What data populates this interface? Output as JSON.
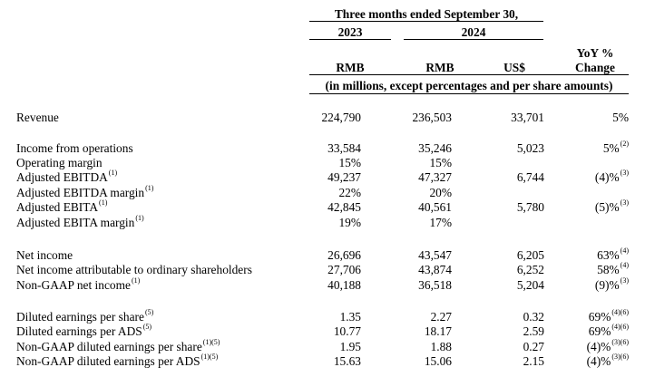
{
  "header": {
    "period_title": "Three months ended September 30,",
    "year_2023": "2023",
    "year_2024": "2024",
    "yoy_line1": "YoY %",
    "yoy_line2": "Change",
    "col_rmb_2023": "RMB",
    "col_rmb_2024": "RMB",
    "col_usd": "US$",
    "units_note": "(in millions, except percentages and per share amounts)"
  },
  "rows": [
    {
      "label": "Revenue",
      "note": "",
      "v2023": "224,790",
      "v2024": "236,503",
      "usd": "33,701",
      "yoy": "5%",
      "yoy_note": ""
    },
    {
      "label": "Income from operations",
      "note": "",
      "v2023": "33,584",
      "v2024": "35,246",
      "usd": "5,023",
      "yoy": "5%",
      "yoy_note": "(2)"
    },
    {
      "label": "Operating margin",
      "note": "",
      "v2023": "15%",
      "v2024": "15%",
      "usd": "",
      "yoy": "",
      "yoy_note": ""
    },
    {
      "label": "Adjusted EBITDA",
      "note": "(1)",
      "v2023": "49,237",
      "v2024": "47,327",
      "usd": "6,744",
      "yoy": "(4)%",
      "yoy_note": "(3)"
    },
    {
      "label": "Adjusted EBITDA margin",
      "note": "(1)",
      "v2023": "22%",
      "v2024": "20%",
      "usd": "",
      "yoy": "",
      "yoy_note": ""
    },
    {
      "label": "Adjusted EBITA",
      "note": "(1)",
      "v2023": "42,845",
      "v2024": "40,561",
      "usd": "5,780",
      "yoy": "(5)%",
      "yoy_note": "(3)"
    },
    {
      "label": "Adjusted EBITA margin",
      "note": "(1)",
      "v2023": "19%",
      "v2024": "17%",
      "usd": "",
      "yoy": "",
      "yoy_note": ""
    },
    {
      "label": "Net income",
      "note": "",
      "v2023": "26,696",
      "v2024": "43,547",
      "usd": "6,205",
      "yoy": "63%",
      "yoy_note": "(4)"
    },
    {
      "label": "Net income attributable to ordinary shareholders",
      "note": "",
      "v2023": "27,706",
      "v2024": "43,874",
      "usd": "6,252",
      "yoy": "58%",
      "yoy_note": "(4)"
    },
    {
      "label": "Non-GAAP net income",
      "note": "(1)",
      "v2023": "40,188",
      "v2024": "36,518",
      "usd": "5,204",
      "yoy": "(9)%",
      "yoy_note": "(3)"
    },
    {
      "label": "Diluted earnings per share",
      "note": "(5)",
      "v2023": "1.35",
      "v2024": "2.27",
      "usd": "0.32",
      "yoy": "69%",
      "yoy_note": "(4)(6)"
    },
    {
      "label": "Diluted earnings per ADS",
      "note": "(5)",
      "v2023": "10.77",
      "v2024": "18.17",
      "usd": "2.59",
      "yoy": "69%",
      "yoy_note": "(4)(6)"
    },
    {
      "label": "Non-GAAP diluted earnings per share",
      "note": "(1)(5)",
      "v2023": "1.95",
      "v2024": "1.88",
      "usd": "0.27",
      "yoy": "(4)%",
      "yoy_note": "(3)(6)"
    },
    {
      "label": "Non-GAAP diluted earnings per ADS",
      "note": "(1)(5)",
      "v2023": "15.63",
      "v2024": "15.06",
      "usd": "2.15",
      "yoy": "(4)%",
      "yoy_note": "(3)(6)"
    }
  ]
}
